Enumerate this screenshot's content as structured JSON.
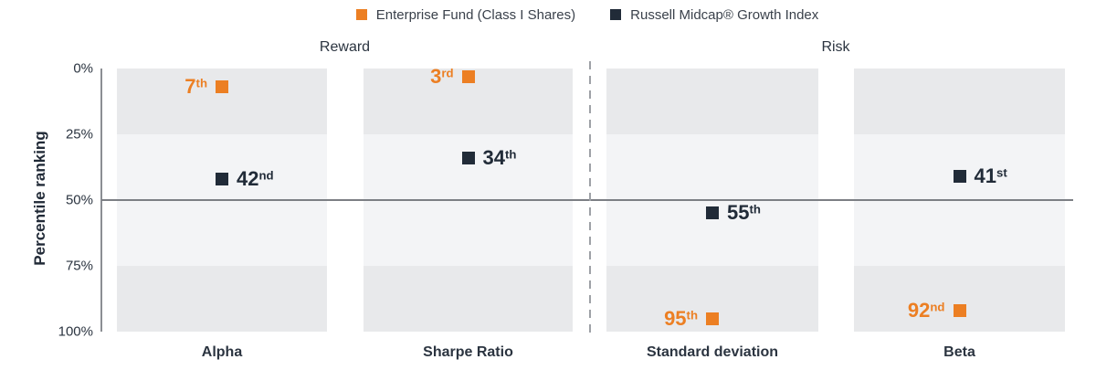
{
  "legend": {
    "items": [
      {
        "label": "Enterprise Fund (Class I Shares)",
        "color": "#EC7F23"
      },
      {
        "label": "Russell Midcap® Growth Index",
        "color": "#212B38"
      }
    ]
  },
  "chart_data": {
    "type": "scatter",
    "title": "",
    "ylabel": "Percentile ranking",
    "xlabel": "",
    "y_axis": {
      "inverted": true,
      "min": 0,
      "max": 100,
      "ticks": [
        {
          "label": "0%",
          "value": 0
        },
        {
          "label": "25%",
          "value": 25
        },
        {
          "label": "50%",
          "value": 50
        },
        {
          "label": "75%",
          "value": 75
        },
        {
          "label": "100%",
          "value": 100
        }
      ]
    },
    "sections": [
      {
        "label": "Reward",
        "categories": [
          "Alpha",
          "Sharpe Ratio"
        ]
      },
      {
        "label": "Risk",
        "categories": [
          "Standard deviation",
          "Beta"
        ]
      }
    ],
    "categories": [
      "Alpha",
      "Sharpe Ratio",
      "Standard deviation",
      "Beta"
    ],
    "series": [
      {
        "name": "Enterprise Fund (Class I Shares)",
        "color": "#EC7F23",
        "label_side": "left",
        "points": [
          {
            "category": "Alpha",
            "value": 7,
            "label": "7",
            "ordinal": "th"
          },
          {
            "category": "Sharpe Ratio",
            "value": 3,
            "label": "3",
            "ordinal": "rd"
          },
          {
            "category": "Standard deviation",
            "value": 95,
            "label": "95",
            "ordinal": "th"
          },
          {
            "category": "Beta",
            "value": 92,
            "label": "92",
            "ordinal": "nd"
          }
        ]
      },
      {
        "name": "Russell Midcap® Growth Index",
        "color": "#212B38",
        "label_side": "right",
        "points": [
          {
            "category": "Alpha",
            "value": 42,
            "label": "42",
            "ordinal": "nd"
          },
          {
            "category": "Sharpe Ratio",
            "value": 34,
            "label": "34",
            "ordinal": "th"
          },
          {
            "category": "Standard deviation",
            "value": 55,
            "label": "55",
            "ordinal": "th"
          },
          {
            "category": "Beta",
            "value": 41,
            "label": "41",
            "ordinal": "st"
          }
        ]
      }
    ],
    "reference_line": 50,
    "quartile_shading": [
      "#E8E9EB",
      "#F3F4F6",
      "#F3F4F6",
      "#E8E9EB"
    ],
    "colors": {
      "axis_line": "#8B8E93",
      "reference_line": "#7C7F84",
      "section_divider": "#9EA1A6",
      "tick_text": "#2B3440"
    },
    "legend_position": "top-center",
    "grid": false
  }
}
